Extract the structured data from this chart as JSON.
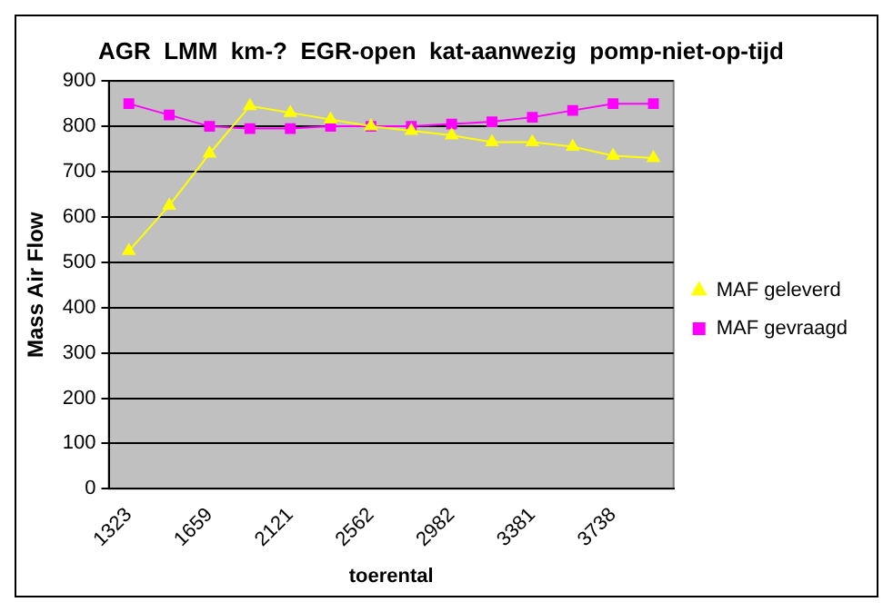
{
  "chart_data": {
    "type": "line",
    "title": "AGR  LMM  km-?  EGR-open  kat-aanwezig  pomp-niet-op-tijd",
    "xlabel": "toerental",
    "ylabel": "Mass Air Flow",
    "categories": [
      "1323",
      null,
      "1659",
      null,
      "2121",
      null,
      "2562",
      null,
      "2982",
      null,
      "3381",
      null,
      "3738",
      null
    ],
    "series": [
      {
        "name": "MAF gevraagd",
        "color": "#ff00ff",
        "marker": "square",
        "values": [
          850,
          825,
          800,
          795,
          795,
          800,
          800,
          800,
          805,
          810,
          820,
          835,
          850,
          850
        ]
      },
      {
        "name": "MAF geleverd",
        "color": "#ffff00",
        "marker": "triangle",
        "values": [
          525,
          625,
          740,
          845,
          830,
          815,
          800,
          790,
          780,
          765,
          765,
          755,
          735,
          730
        ]
      }
    ],
    "ylim": [
      0,
      900
    ],
    "yticks": [
      0,
      100,
      200,
      300,
      400,
      500,
      600,
      700,
      800,
      900
    ],
    "grid": "y",
    "legend": "right"
  }
}
